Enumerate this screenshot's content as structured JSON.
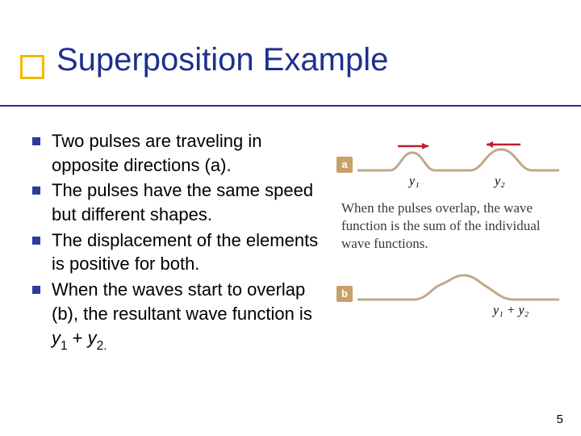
{
  "title": {
    "text": "Superposition Example",
    "color": "#1f2f8f",
    "fontsize": 40
  },
  "accent": {
    "border_color": "#f5b800",
    "underline_color": "#1f2f8f"
  },
  "bullets": {
    "marker_color": "#2a3c9e",
    "text_color": "#000000",
    "fontsize": 22,
    "items": [
      {
        "text": "Two pulses are traveling in opposite directions (a)."
      },
      {
        "text": "The pulses have the same speed but different shapes."
      },
      {
        "text": "The displacement of the elements is positive for both."
      },
      {
        "html": "When the waves start to overlap (b), the resultant wave function is <span class='ital'>y</span><span class='sub'>1</span> + <span class='ital'>y</span><span class='sub'>2.</span>"
      }
    ]
  },
  "figure": {
    "panel_bg": "#c9a06a",
    "wave_stroke": "#c2a88a",
    "wave_stroke_width": 3,
    "arrow_color": "#b7202e",
    "label_a": "a",
    "label_b": "b",
    "y1": "y₁",
    "y2": "y₂",
    "y12": "y₁ + y₂",
    "caption": "When the pulses overlap, the wave function is the sum of the individual wave functions.",
    "caption_color": "#3a3a3a",
    "math_font": "Georgia, 'Times New Roman', serif"
  },
  "page_number": "5"
}
